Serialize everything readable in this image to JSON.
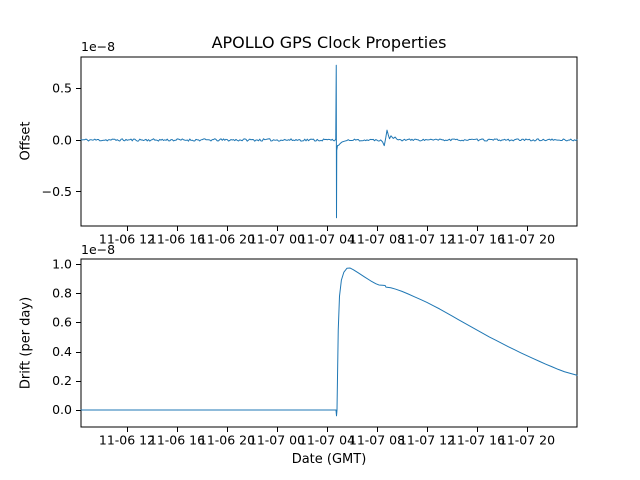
{
  "chart_data": [
    {
      "type": "line",
      "title": "APOLLO GPS Clock Properties",
      "ylabel": "Offset",
      "xlabel": "",
      "y_offset_text": "1e−8",
      "line_color": "#1f77b4",
      "grid": false,
      "legend": null,
      "xlim": [
        8.32,
        48.0
      ],
      "ylim": [
        -0.835,
        0.805
      ],
      "x_ticks": [
        12,
        16,
        20,
        24,
        28,
        32,
        36,
        40,
        44
      ],
      "x_tick_labels": [
        "11-06 12",
        "11-06 16",
        "11-06 20",
        "11-07 00",
        "11-07 04",
        "11-07 08",
        "11-07 12",
        "11-07 16",
        "11-07 20"
      ],
      "y_ticks": [
        0.5,
        0.0,
        -0.5
      ],
      "y_tick_labels": [
        "0.5",
        "0.0",
        "−0.5"
      ],
      "x_units": "hours since 11-06 00:00 GMT",
      "y_units": "1e-8",
      "series": [
        {
          "name": "offset",
          "segments": [
            {
              "type": "noise",
              "x0": 8.32,
              "x1": 28.68,
              "amp": 0.012,
              "seed": 11
            },
            {
              "type": "points",
              "pts": [
                [
                  28.7,
                  0.01
                ],
                [
                  28.74,
                  0.725
                ],
                [
                  28.76,
                  -0.755
                ],
                [
                  28.78,
                  -0.1
                ],
                [
                  28.84,
                  -0.055
                ],
                [
                  28.95,
                  -0.05
                ],
                [
                  29.05,
                  -0.035
                ],
                [
                  29.2,
                  -0.02
                ],
                [
                  29.4,
                  -0.012
                ],
                [
                  29.6,
                  -0.005
                ]
              ]
            },
            {
              "type": "noise",
              "x0": 29.7,
              "x1": 32.25,
              "amp": 0.01,
              "seed": 22
            },
            {
              "type": "points",
              "pts": [
                [
                  32.3,
                  0.0
                ],
                [
                  32.45,
                  -0.02
                ],
                [
                  32.58,
                  -0.055
                ],
                [
                  32.7,
                  0.02
                ],
                [
                  32.8,
                  0.095
                ],
                [
                  32.9,
                  0.05
                ],
                [
                  33.0,
                  0.012
                ],
                [
                  33.12,
                  0.04
                ],
                [
                  33.3,
                  0.015
                ],
                [
                  33.45,
                  0.028
                ],
                [
                  33.6,
                  0.006
                ]
              ]
            },
            {
              "type": "noise",
              "x0": 33.7,
              "x1": 48.0,
              "amp": 0.01,
              "seed": 33
            }
          ]
        }
      ]
    },
    {
      "type": "line",
      "title": "",
      "ylabel": "Drift (per day)",
      "xlabel": "Date (GMT)",
      "y_offset_text": "1e−8",
      "line_color": "#1f77b4",
      "grid": false,
      "legend": null,
      "xlim": [
        8.32,
        48.0
      ],
      "ylim": [
        -0.117,
        1.035
      ],
      "x_ticks": [
        12,
        16,
        20,
        24,
        28,
        32,
        36,
        40,
        44
      ],
      "x_tick_labels": [
        "11-06 12",
        "11-06 16",
        "11-06 20",
        "11-07 00",
        "11-07 04",
        "11-07 08",
        "11-07 12",
        "11-07 16",
        "11-07 20"
      ],
      "y_ticks": [
        1.0,
        0.8,
        0.6,
        0.4,
        0.2,
        0.0
      ],
      "y_tick_labels": [
        "1.0",
        "0.8",
        "0.6",
        "0.4",
        "0.2",
        "0.0"
      ],
      "x_units": "hours since 11-06 00:00 GMT",
      "y_units": "1e-8",
      "series": [
        {
          "name": "drift",
          "segments": [
            {
              "type": "points",
              "pts": [
                [
                  8.32,
                  0.0
                ],
                [
                  28.72,
                  0.0
                ],
                [
                  28.76,
                  -0.04
                ],
                [
                  28.8,
                  0.0
                ],
                [
                  28.9,
                  0.55
                ],
                [
                  29.0,
                  0.78
                ],
                [
                  29.15,
                  0.89
                ],
                [
                  29.35,
                  0.945
                ],
                [
                  29.6,
                  0.972
                ],
                [
                  29.85,
                  0.973
                ],
                [
                  30.1,
                  0.962
                ],
                [
                  30.5,
                  0.94
                ],
                [
                  31.0,
                  0.912
                ],
                [
                  31.5,
                  0.885
                ],
                [
                  31.9,
                  0.866
                ],
                [
                  32.15,
                  0.857
                ],
                [
                  32.65,
                  0.853
                ],
                [
                  32.72,
                  0.842
                ],
                [
                  33.1,
                  0.838
                ],
                [
                  33.5,
                  0.828
                ],
                [
                  34.0,
                  0.813
                ],
                [
                  34.5,
                  0.795
                ],
                [
                  35.0,
                  0.776
                ],
                [
                  35.5,
                  0.757
                ],
                [
                  36.0,
                  0.737
                ],
                [
                  36.5,
                  0.715
                ],
                [
                  37.0,
                  0.693
                ],
                [
                  37.5,
                  0.669
                ],
                [
                  38.0,
                  0.645
                ],
                [
                  38.5,
                  0.62
                ],
                [
                  39.0,
                  0.596
                ],
                [
                  39.5,
                  0.572
                ],
                [
                  40.0,
                  0.548
                ],
                [
                  40.5,
                  0.524
                ],
                [
                  41.0,
                  0.5
                ],
                [
                  41.5,
                  0.478
                ],
                [
                  42.0,
                  0.456
                ],
                [
                  42.5,
                  0.434
                ],
                [
                  43.0,
                  0.413
                ],
                [
                  43.5,
                  0.392
                ],
                [
                  44.0,
                  0.372
                ],
                [
                  44.5,
                  0.352
                ],
                [
                  45.0,
                  0.333
                ],
                [
                  45.5,
                  0.314
                ],
                [
                  46.0,
                  0.296
                ],
                [
                  46.5,
                  0.278
                ],
                [
                  47.0,
                  0.262
                ],
                [
                  47.5,
                  0.25
                ],
                [
                  48.0,
                  0.238
                ]
              ]
            }
          ]
        }
      ]
    }
  ]
}
